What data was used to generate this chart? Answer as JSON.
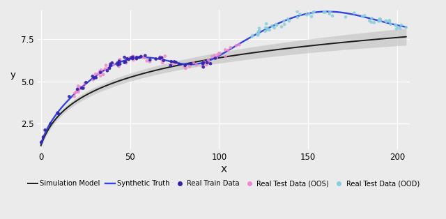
{
  "title": "",
  "xlabel": "X",
  "ylabel": "y",
  "xlim": [
    -2,
    207
  ],
  "ylim": [
    1.0,
    9.2
  ],
  "yticks": [
    2.5,
    5.0,
    7.5
  ],
  "xticks": [
    0,
    50,
    100,
    150,
    200
  ],
  "bg_color": "#ebebeb",
  "grid_color": "#ffffff",
  "sim_model_color": "#1a1a1a",
  "synth_truth_color": "#3344dd",
  "real_train_color": "#3322aa",
  "real_test_oos_color": "#ee88cc",
  "real_test_ood_color": "#88ccdd",
  "ci_color": "#bbbbbb",
  "ci_alpha": 0.55,
  "legend_labels": [
    "Simulation Model",
    "Synthetic Truth",
    "Real Train Data",
    "Real Test Data (OOS)",
    "Real Test Data (OOD)"
  ]
}
